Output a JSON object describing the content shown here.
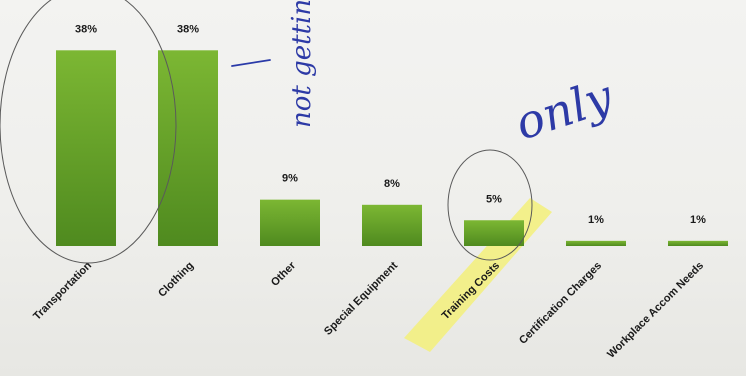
{
  "chart_data": {
    "type": "bar",
    "categories": [
      "Transportation",
      "Clothing",
      "Other",
      "Special Equipment",
      "Training Costs",
      "Certification Charges",
      "Workplace Accom Needs"
    ],
    "values": [
      38,
      38,
      9,
      8,
      5,
      1,
      1
    ],
    "data_labels": [
      "38%",
      "38%",
      "9%",
      "8%",
      "5%",
      "1%",
      "1%"
    ],
    "ylim": [
      0,
      40
    ],
    "grid": false,
    "bar_color": "#6aa22c",
    "highlight_category": "Training Costs",
    "highlight_color": "#f3f07a"
  },
  "annotations": {
    "handwritten_note_1": "not getting skills",
    "handwritten_note_2": "only",
    "ink_color": "#2a3aa8"
  }
}
